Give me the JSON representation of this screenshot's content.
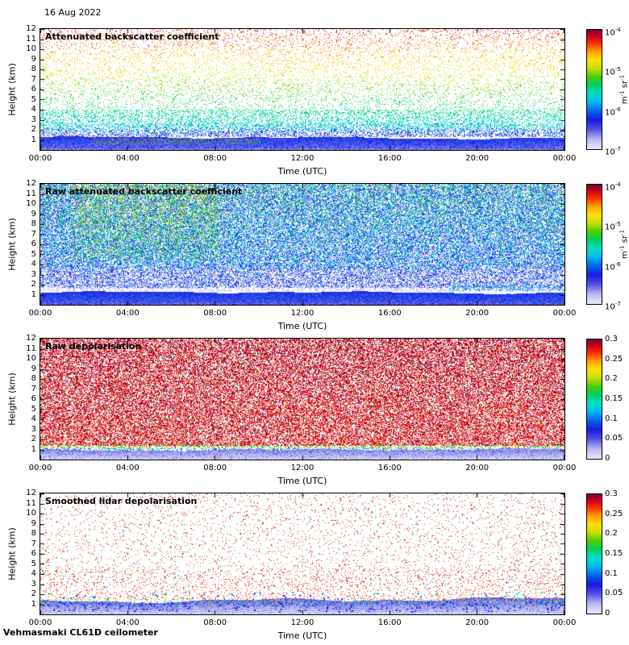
{
  "header": {
    "date": "16 Aug 2022"
  },
  "footer": {
    "instrument": "Vehmasmaki CL61D ceilometer"
  },
  "colormap": {
    "stops": [
      [
        0.0,
        "#e8e8fa"
      ],
      [
        0.08,
        "#b8b8f0"
      ],
      [
        0.16,
        "#5555e8"
      ],
      [
        0.24,
        "#1a1ae0"
      ],
      [
        0.32,
        "#0066f0"
      ],
      [
        0.4,
        "#00c0f0"
      ],
      [
        0.47,
        "#00e0c0"
      ],
      [
        0.54,
        "#00d060"
      ],
      [
        0.61,
        "#50d000"
      ],
      [
        0.68,
        "#c8e000"
      ],
      [
        0.75,
        "#ffe000"
      ],
      [
        0.82,
        "#ffa000"
      ],
      [
        0.89,
        "#ff3000"
      ],
      [
        0.95,
        "#cc0020"
      ],
      [
        1.0,
        "#800030"
      ]
    ]
  },
  "chart_data": [
    {
      "type": "heatmap",
      "title": "Attenuated backscatter coefficient",
      "xlabel": "Time (UTC)",
      "ylabel": "Height (km)",
      "x_ticks": [
        "00:00",
        "04:00",
        "08:00",
        "12:00",
        "16:00",
        "20:00",
        "00:00"
      ],
      "y_ticks": [
        1,
        2,
        3,
        4,
        5,
        6,
        7,
        8,
        9,
        10,
        11,
        12
      ],
      "ylim": [
        0,
        12
      ],
      "x_range_hours": [
        0,
        24
      ],
      "colorbar": {
        "scale": "log",
        "range": [
          "1e-7",
          "1e-4"
        ],
        "ticks": [
          "10^-4",
          "10^-5",
          "10^-6",
          "10^-7"
        ],
        "label": "m^-1 sr^-1"
      },
      "description": "Boundary-layer aerosol as solid blue band below ~1.3 km, dense cyan-green speckle 1.3-3 km, sparse noise speckle above grading green-yellow-orange-red with height; grey dust layer ~0.6-1.1 km between ~02:30 and 10:00.",
      "pattern": {
        "seed": 11,
        "layers": [
          {
            "kind": "speckle",
            "hmin": 2.3,
            "hmax": 12,
            "density": 0.12,
            "tmin": 0.42,
            "tmax": 0.93,
            "jitter": 0.07
          },
          {
            "kind": "speckle",
            "hmin": 2.6,
            "hmax": 4.0,
            "density": 0.25,
            "tmin": 0.45,
            "tmax": 0.52,
            "jitter": 0.08
          },
          {
            "kind": "speckle",
            "hmin": 1.3,
            "hmax": 2.6,
            "density": 0.5,
            "tmin": 0.2,
            "tmax": 0.48,
            "jitter": 0.1
          },
          {
            "kind": "band",
            "hmin": 0,
            "hmax": 1.25,
            "t_top": 0.22,
            "t_bottom": 0.12,
            "jitter": 0.05,
            "wobble": 0.1
          },
          {
            "kind": "speckle",
            "hmin": 0.1,
            "hmax": 1.1,
            "density": 0.3,
            "tmin": 0.25,
            "tmax": 0.32,
            "jitter": 0.06
          },
          {
            "kind": "speckle",
            "x0": 0.1,
            "x1": 0.42,
            "hmin": 0.55,
            "hmax": 1.15,
            "density": 0.5,
            "tmin": 0.5,
            "tmax": 0.6,
            "jitter": 0.15,
            "desat": 0.75
          }
        ]
      }
    },
    {
      "type": "heatmap",
      "title": "Raw attenuated backscatter coefficient",
      "xlabel": "Time (UTC)",
      "ylabel": "Height (km)",
      "x_ticks": [
        "00:00",
        "04:00",
        "08:00",
        "12:00",
        "16:00",
        "20:00",
        "00:00"
      ],
      "y_ticks": [
        1,
        2,
        3,
        4,
        5,
        6,
        7,
        8,
        9,
        10,
        11,
        12
      ],
      "ylim": [
        0,
        12
      ],
      "x_range_hours": [
        0,
        24
      ],
      "colorbar": {
        "scale": "log",
        "range": [
          "1e-7",
          "1e-4"
        ],
        "ticks": [
          "10^-4",
          "10^-5",
          "10^-6",
          "10^-7"
        ],
        "label": "m^-1 sr^-1"
      },
      "description": "Dense blue background noise everywhere above ~1.7 km with green speckle aloft and a yellow-orange noisy patch ~02:00-08:00 above 5 km; pale gap band ~1.3-1.8 km; solid blue boundary layer below ~1.25 km.",
      "pattern": {
        "seed": 22,
        "layers": [
          {
            "kind": "speckle",
            "hmin": 1.7,
            "hmax": 12,
            "density": 0.72,
            "tmin": 0.2,
            "tmax": 0.27,
            "jitter": 0.16
          },
          {
            "kind": "speckle",
            "hmin": 3.5,
            "hmax": 12,
            "density": 0.22,
            "tmin": 0.4,
            "tmax": 0.55,
            "jitter": 0.13
          },
          {
            "kind": "speckle",
            "x0": 0.06,
            "x1": 0.34,
            "hmin": 4.5,
            "hmax": 12,
            "density": 0.2,
            "tmin": 0.55,
            "tmax": 0.72,
            "jitter": 0.12
          },
          {
            "kind": "speckle",
            "hmin": 1.25,
            "hmax": 1.75,
            "density": 0.35,
            "tmin": 0.04,
            "tmax": 0.12,
            "jitter": 0.05
          },
          {
            "kind": "speckle",
            "x0": 0.78,
            "x1": 1.0,
            "hmin": 1.4,
            "hmax": 1.9,
            "density": 0.4,
            "tmin": 0.33,
            "tmax": 0.43,
            "jitter": 0.08
          },
          {
            "kind": "band",
            "hmin": 0,
            "hmax": 1.25,
            "t_top": 0.24,
            "t_bottom": 0.14,
            "jitter": 0.05,
            "wobble": 0.1
          },
          {
            "kind": "speckle",
            "hmin": 0,
            "hmax": 1.1,
            "density": 0.3,
            "tmin": 0.28,
            "tmax": 0.33,
            "jitter": 0.05
          }
        ]
      }
    },
    {
      "type": "heatmap",
      "title": "Raw depolarisation",
      "xlabel": "Time (UTC)",
      "ylabel": "Height (km)",
      "x_ticks": [
        "00:00",
        "04:00",
        "08:00",
        "12:00",
        "16:00",
        "20:00",
        "00:00"
      ],
      "y_ticks": [
        1,
        2,
        3,
        4,
        5,
        6,
        7,
        8,
        9,
        10,
        11,
        12
      ],
      "ylim": [
        0,
        12
      ],
      "x_range_hours": [
        0,
        24
      ],
      "colorbar": {
        "scale": "linear",
        "range": [
          0,
          0.3
        ],
        "ticks": [
          "0.3",
          "0.25",
          "0.2",
          "0.15",
          "0.1",
          "0.05",
          "0"
        ],
        "label": ""
      },
      "description": "Saturated dark-maroon depolarisation noise above ~1.35 km with rare coloured specks; colourful speckled interface ~0.9-1.5 km; pale lavender-blue low-depolarisation boundary layer below ~1 km.",
      "pattern": {
        "seed": 33,
        "layers": [
          {
            "kind": "speckle",
            "hmin": 1.35,
            "hmax": 12,
            "density": 0.8,
            "tmin": 0.93,
            "tmax": 0.96,
            "jitter": 0.045
          },
          {
            "kind": "speckle",
            "hmin": 1.35,
            "hmax": 12,
            "density": 0.035,
            "tmin": 0.3,
            "tmax": 0.7,
            "jitter": 0.3
          },
          {
            "kind": "speckle",
            "hmin": 0.85,
            "hmax": 1.55,
            "density": 0.5,
            "tmin": 0.25,
            "tmax": 0.85,
            "jitter": 0.3
          },
          {
            "kind": "band",
            "hmin": 0,
            "hmax": 1.0,
            "t_top": 0.12,
            "t_bottom": 0.03,
            "jitter": 0.05,
            "wobble": 0.12
          },
          {
            "kind": "speckle",
            "hmin": 0,
            "hmax": 0.9,
            "density": 0.25,
            "tmin": 0.08,
            "tmax": 0.16,
            "jitter": 0.06
          }
        ]
      }
    },
    {
      "type": "heatmap",
      "title": "Smoothed lidar depolarisation",
      "xlabel": "Time (UTC)",
      "ylabel": "Height (km)",
      "x_ticks": [
        "00:00",
        "04:00",
        "08:00",
        "12:00",
        "16:00",
        "20:00",
        "00:00"
      ],
      "y_ticks": [
        1,
        2,
        3,
        4,
        5,
        6,
        7,
        8,
        9,
        10,
        11,
        12
      ],
      "ylim": [
        0,
        12
      ],
      "x_range_hours": [
        0,
        24
      ],
      "colorbar": {
        "scale": "linear",
        "range": [
          0,
          0.3
        ],
        "ticks": [
          "0.3",
          "0.25",
          "0.2",
          "0.15",
          "0.1",
          "0.05",
          "0"
        ],
        "label": ""
      },
      "description": "Mostly clear (white) with sparse maroon residual speckle, slightly denser below 4.5 km; wavy light-blue boundary layer up to ~1.5 km with darker blue blobs and scattered coloured dots at its top edge.",
      "pattern": {
        "seed": 44,
        "layers": [
          {
            "kind": "speckle",
            "hmin": 1.5,
            "hmax": 12,
            "density": 0.045,
            "tmin": 0.9,
            "tmax": 0.94,
            "jitter": 0.05
          },
          {
            "kind": "speckle",
            "hmin": 1.5,
            "hmax": 4.5,
            "density": 0.05,
            "tmin": 0.9,
            "tmax": 0.94,
            "jitter": 0.05
          },
          {
            "kind": "speckle",
            "hmin": 1.5,
            "hmax": 12,
            "density": 0.004,
            "tmin": 0.3,
            "tmax": 0.6,
            "jitter": 0.2
          },
          {
            "kind": "band",
            "hmin": 0,
            "hmax": 1.45,
            "t_top": 0.15,
            "t_bottom": 0.04,
            "jitter": 0.06,
            "wobble": 0.18
          },
          {
            "kind": "speckle",
            "hmin": 0.3,
            "hmax": 1.3,
            "density": 0.12,
            "tmin": 0.18,
            "tmax": 0.3,
            "jitter": 0.08,
            "size": 2
          },
          {
            "kind": "speckle",
            "hmin": 0.85,
            "hmax": 1.55,
            "density": 0.2,
            "tmin": 0.3,
            "tmax": 0.85,
            "jitter": 0.3
          },
          {
            "kind": "speckle",
            "hmin": 1.5,
            "hmax": 2.2,
            "density": 0.04,
            "tmin": 0.25,
            "tmax": 0.5,
            "jitter": 0.15,
            "size": 2
          }
        ]
      }
    }
  ]
}
